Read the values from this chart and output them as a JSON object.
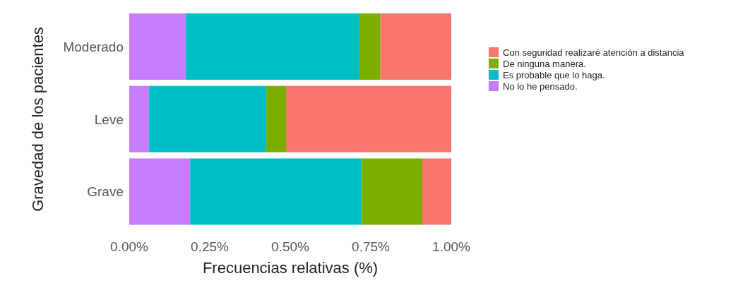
{
  "chart_data": {
    "type": "bar",
    "orientation": "horizontal",
    "stacked": true,
    "xlabel": "Frecuencias relativas (%)",
    "ylabel": "Gravedad de los pacientes",
    "categories": [
      "Moderado",
      "Leve",
      "Grave"
    ],
    "series": [
      {
        "name": "No lo he pensado.",
        "color": "#c77cff",
        "values": [
          0.175,
          0.061,
          0.189
        ]
      },
      {
        "name": "Es probable que lo haga.",
        "color": "#00bfc4",
        "values": [
          0.54,
          0.364,
          0.532
        ]
      },
      {
        "name": "De ninguna manera.",
        "color": "#7cae00",
        "values": [
          0.065,
          0.062,
          0.189
        ]
      },
      {
        "name": "Con seguridad realizaré atención a distancia",
        "color": "#f8766d",
        "values": [
          0.22,
          0.513,
          0.09
        ]
      }
    ],
    "xlim": [
      0,
      1
    ],
    "xticks": [
      {
        "value": 0,
        "label": "0.00%"
      },
      {
        "value": 0.25,
        "label": "0.25%"
      },
      {
        "value": 0.5,
        "label": "0.50%"
      },
      {
        "value": 0.75,
        "label": "0.75%"
      },
      {
        "value": 1,
        "label": "1.00%"
      }
    ],
    "grid": false,
    "legend": "right"
  }
}
